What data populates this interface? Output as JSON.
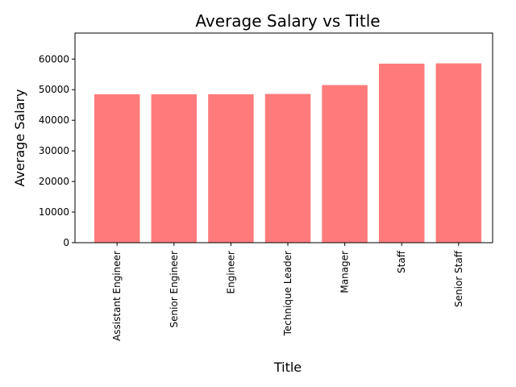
{
  "chart_data": {
    "type": "bar",
    "title": "Average Salary vs Title",
    "xlabel": "Title",
    "ylabel": "Average Salary",
    "categories": [
      "Assistant Engineer",
      "Senior Engineer",
      "Engineer",
      "Technique Leader",
      "Manager",
      "Staff",
      "Senior Staff"
    ],
    "values": [
      48500,
      48500,
      48500,
      48600,
      51500,
      58500,
      58600
    ],
    "ylim": [
      0,
      68500
    ],
    "yticks": [
      0,
      10000,
      20000,
      30000,
      40000,
      50000,
      60000
    ],
    "bar_color": "#ff7b7b",
    "grid": false,
    "legend": "none"
  }
}
